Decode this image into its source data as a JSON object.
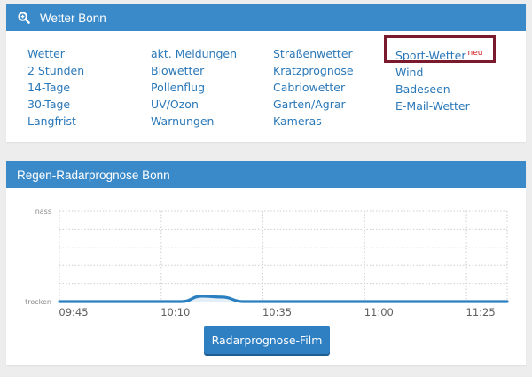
{
  "weather_panel": {
    "title": "Wetter Bonn",
    "icon": "search-icon",
    "columns": [
      [
        "Wetter",
        "2 Stunden",
        "14-Tage",
        "30-Tage",
        "Langfrist"
      ],
      [
        "akt. Meldungen",
        "Biowetter",
        "Pollenflug",
        "UV/Ozon",
        "Warnungen"
      ],
      [
        "Straßenwetter",
        "Kratzprognose",
        "Cabriowetter",
        "Garten/Agrar",
        "Kameras"
      ],
      [
        "Sport-Wetter",
        "Wind",
        "Badeseen",
        "E-Mail-Wetter"
      ]
    ],
    "new_badge": "neu"
  },
  "radar_panel": {
    "title": "Regen-Radarprognose Bonn",
    "button_label": "Radarprognose-Film"
  },
  "colors": {
    "header_bg": "#3a8ac9",
    "link": "#2b78b8",
    "badge": "#d11b1b",
    "highlight": "#7a1a2e",
    "line": "#2a7fc0"
  },
  "chart_data": {
    "type": "area",
    "y_axis_labels": [
      "nass",
      "trocken"
    ],
    "x_ticks": [
      "09:45",
      "10:10",
      "10:35",
      "11:00",
      "11:25"
    ],
    "x": [
      "09:45",
      "09:50",
      "09:55",
      "10:00",
      "10:05",
      "10:10",
      "10:15",
      "10:20",
      "10:25",
      "10:30",
      "10:35",
      "10:40",
      "10:45",
      "10:50",
      "10:55",
      "11:00",
      "11:05",
      "11:10",
      "11:15",
      "11:20",
      "11:25",
      "11:30",
      "11:35"
    ],
    "values": [
      0,
      0,
      0,
      0,
      0,
      0,
      0,
      0.06,
      0.05,
      0,
      0,
      0,
      0,
      0,
      0,
      0,
      0,
      0,
      0,
      0,
      0,
      0,
      0
    ],
    "ylim": [
      0,
      1
    ],
    "grid": true
  }
}
